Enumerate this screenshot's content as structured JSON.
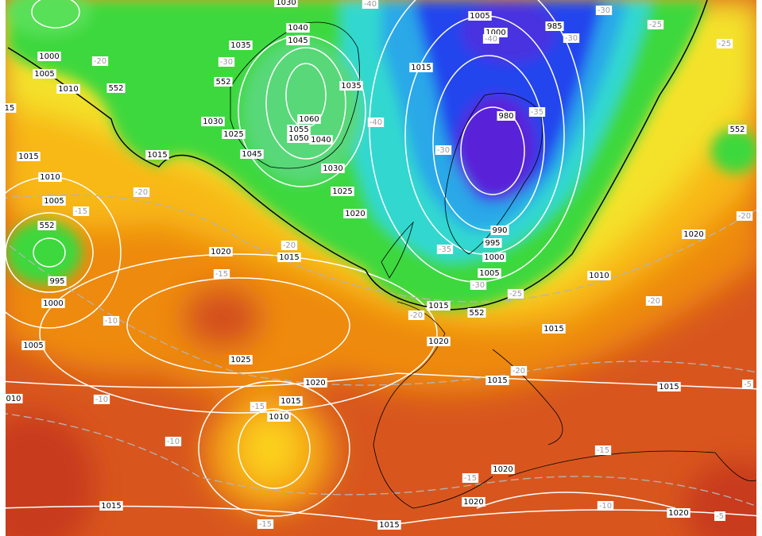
{
  "pressure_labels": [
    "1030",
    "1005",
    "1000",
    "985",
    "1040",
    "1045",
    "1035",
    "1000",
    "1005",
    "1010",
    "552",
    "552",
    "1015",
    "1035",
    "1030",
    "1060",
    "1055",
    "1050",
    "1040",
    "1025",
    "1045",
    "980",
    "15",
    "1015",
    "1015",
    "1030",
    "1010",
    "1025",
    "1005",
    "1020",
    "552",
    "990",
    "1020",
    "995",
    "1020",
    "1015",
    "1000",
    "995",
    "1005",
    "1010",
    "1000",
    "1015",
    "552",
    "1015",
    "1020",
    "1005",
    "1025",
    "1020",
    "1015",
    "1015",
    "010",
    "1015",
    "1010",
    "1020",
    "1020",
    "1020",
    "1015",
    "1015",
    "552"
  ],
  "temperature_labels": [
    "-40",
    "-30",
    "-25",
    "-40",
    "-30",
    "-25",
    "-20",
    "-30",
    "-35",
    "-40",
    "-30",
    "-20",
    "-15",
    "-20",
    "-20",
    "-35",
    "-15",
    "-30",
    "-25",
    "-20",
    "-10",
    "-20",
    "-20",
    "-10",
    "-15",
    "-10",
    "-15",
    "-15",
    "-10",
    "-5",
    "-15",
    "-5"
  ]
}
